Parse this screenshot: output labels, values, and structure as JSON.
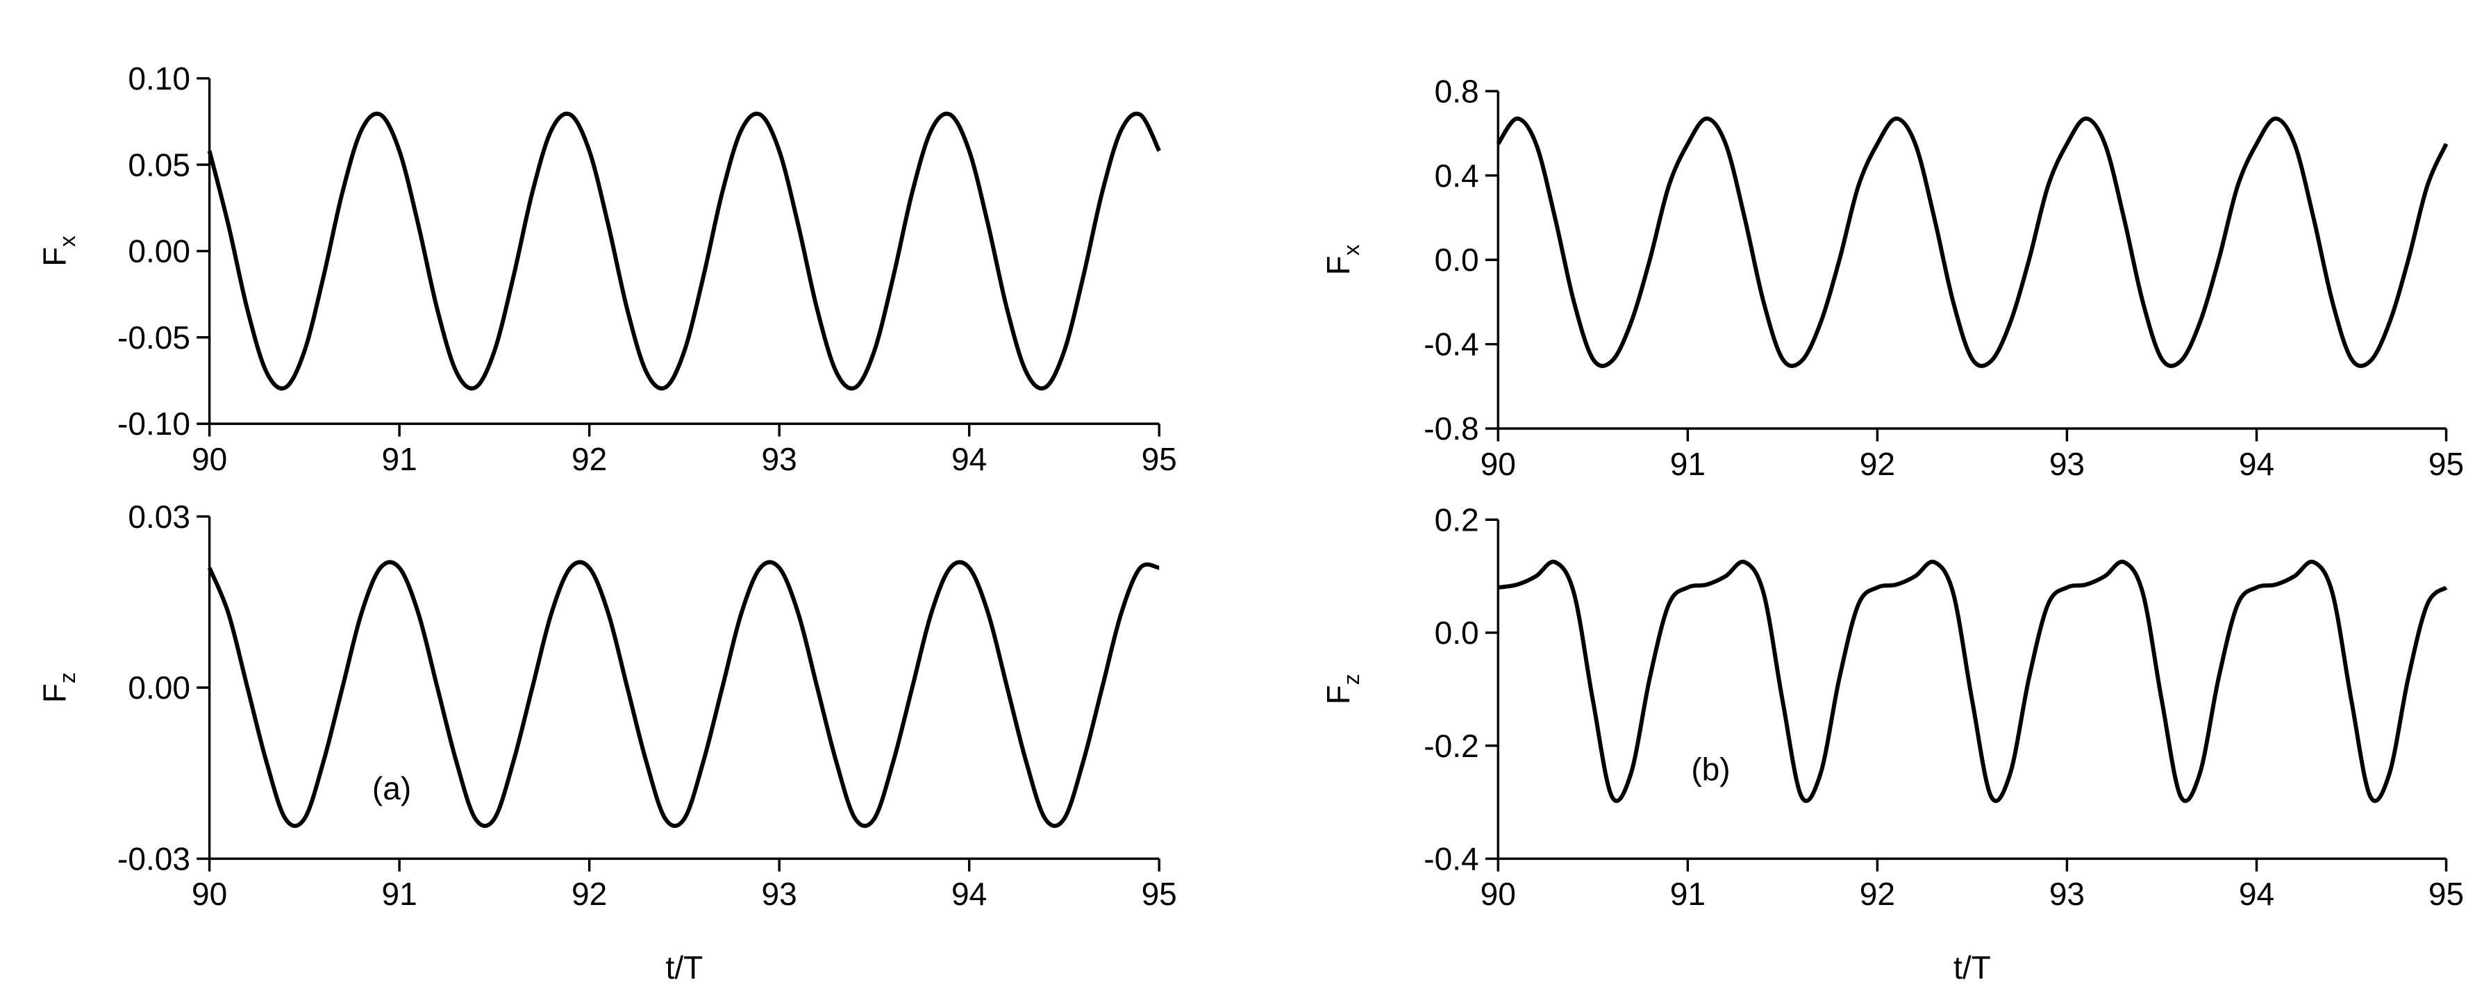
{
  "chart_data": [
    {
      "type": "line",
      "ylabel": "F",
      "ylabel_subscript": "x",
      "x": [
        90,
        90.1,
        90.2,
        90.3,
        90.4,
        90.5,
        90.6,
        90.7,
        90.8,
        90.9,
        91,
        91.1,
        91.2,
        91.3,
        91.4,
        91.5,
        91.6,
        91.7,
        91.8,
        91.9,
        92,
        92.1,
        92.2,
        92.3,
        92.4,
        92.5,
        92.6,
        92.7,
        92.8,
        92.9,
        93,
        93.1,
        93.2,
        93.3,
        93.4,
        93.5,
        93.6,
        93.7,
        93.8,
        93.9,
        94,
        94.1,
        94.2,
        94.3,
        94.4,
        94.5,
        94.6,
        94.7,
        94.8,
        94.9,
        95
      ],
      "values": [
        0.058,
        0.015,
        -0.034,
        -0.07,
        -0.079,
        -0.058,
        -0.015,
        0.034,
        0.07,
        0.079,
        0.058,
        0.015,
        -0.034,
        -0.07,
        -0.079,
        -0.058,
        -0.015,
        0.034,
        0.07,
        0.079,
        0.058,
        0.015,
        -0.034,
        -0.07,
        -0.079,
        -0.058,
        -0.015,
        0.034,
        0.07,
        0.079,
        0.058,
        0.015,
        -0.034,
        -0.07,
        -0.079,
        -0.058,
        -0.015,
        0.034,
        0.07,
        0.079,
        0.058,
        0.015,
        -0.034,
        -0.07,
        -0.079,
        -0.058,
        -0.015,
        0.034,
        0.07,
        0.079,
        0.058
      ],
      "color": "#000000",
      "xlim": [
        90,
        95
      ],
      "xticks": [
        90,
        91,
        92,
        93,
        94,
        95
      ],
      "ylim": [
        -0.1,
        0.1
      ],
      "yticks": [
        {
          "value": -0.1,
          "label": "-0.10"
        },
        {
          "value": -0.05,
          "label": "-0.05"
        },
        {
          "value": 0,
          "label": "0.00"
        },
        {
          "value": 0.05,
          "label": "0.05"
        },
        {
          "value": 0.1,
          "label": "0.10"
        }
      ]
    },
    {
      "type": "line",
      "ylabel": "F",
      "ylabel_subscript": "z",
      "xlabel": "t/T",
      "annotation": "(a)",
      "x": [
        90,
        90.1,
        90.2,
        90.3,
        90.4,
        90.5,
        90.6,
        90.7,
        90.8,
        90.9,
        91,
        91.1,
        91.2,
        91.3,
        91.4,
        91.5,
        91.6,
        91.7,
        91.8,
        91.9,
        92,
        92.1,
        92.2,
        92.3,
        92.4,
        92.5,
        92.6,
        92.7,
        92.8,
        92.9,
        93,
        93.1,
        93.2,
        93.3,
        93.4,
        93.5,
        93.6,
        93.7,
        93.8,
        93.9,
        94,
        94.1,
        94.2,
        94.3,
        94.4,
        94.5,
        94.6,
        94.7,
        94.8,
        94.9,
        95
      ],
      "values": [
        0.021,
        0.013,
        0.0,
        -0.013,
        -0.023,
        -0.023,
        -0.013,
        0.0,
        0.013,
        0.021,
        0.021,
        0.013,
        0.0,
        -0.013,
        -0.023,
        -0.023,
        -0.013,
        0.0,
        0.013,
        0.021,
        0.021,
        0.013,
        0.0,
        -0.013,
        -0.023,
        -0.023,
        -0.013,
        0.0,
        0.013,
        0.021,
        0.021,
        0.013,
        0.0,
        -0.013,
        -0.023,
        -0.023,
        -0.013,
        0.0,
        0.013,
        0.021,
        0.021,
        0.013,
        0.0,
        -0.013,
        -0.023,
        -0.023,
        -0.013,
        0.0,
        0.013,
        0.021,
        0.021
      ],
      "color": "#000000",
      "xlim": [
        90,
        95
      ],
      "xticks": [
        90,
        91,
        92,
        93,
        94,
        95
      ],
      "ylim": [
        -0.03,
        0.03
      ],
      "yticks": [
        {
          "value": -0.03,
          "label": "-0.03"
        },
        {
          "value": 0,
          "label": "0.00"
        },
        {
          "value": 0.03,
          "label": "0.03"
        }
      ]
    },
    {
      "type": "line",
      "ylabel": "F",
      "ylabel_subscript": "x",
      "x": [
        90,
        90.1,
        90.2,
        90.3,
        90.4,
        90.5,
        90.6,
        90.7,
        90.8,
        90.9,
        91,
        91.1,
        91.2,
        91.3,
        91.4,
        91.5,
        91.6,
        91.7,
        91.8,
        91.9,
        92,
        92.1,
        92.2,
        92.3,
        92.4,
        92.5,
        92.6,
        92.7,
        92.8,
        92.9,
        93,
        93.1,
        93.2,
        93.3,
        93.4,
        93.5,
        93.6,
        93.7,
        93.8,
        93.9,
        94,
        94.1,
        94.2,
        94.3,
        94.4,
        94.5,
        94.6,
        94.7,
        94.8,
        94.9,
        95
      ],
      "values": [
        0.55,
        0.67,
        0.55,
        0.2,
        -0.2,
        -0.47,
        -0.48,
        -0.3,
        0.0,
        0.35,
        0.55,
        0.67,
        0.55,
        0.2,
        -0.2,
        -0.47,
        -0.48,
        -0.3,
        0.0,
        0.35,
        0.55,
        0.67,
        0.55,
        0.2,
        -0.2,
        -0.47,
        -0.48,
        -0.3,
        0.0,
        0.35,
        0.55,
        0.67,
        0.55,
        0.2,
        -0.2,
        -0.47,
        -0.48,
        -0.3,
        0.0,
        0.35,
        0.55,
        0.67,
        0.55,
        0.2,
        -0.2,
        -0.47,
        -0.48,
        -0.3,
        0.0,
        0.35,
        0.55
      ],
      "color": "#000000",
      "xlim": [
        90,
        95
      ],
      "xticks": [
        90,
        91,
        92,
        93,
        94,
        95
      ],
      "ylim": [
        -0.8,
        0.8
      ],
      "yticks": [
        -0.8,
        -0.4,
        {
          "value": 0,
          "label": "0.0"
        },
        0.4,
        0.8
      ]
    },
    {
      "type": "line",
      "ylabel": "F",
      "ylabel_subscript": "z",
      "xlabel": "t/T",
      "annotation": "(b)",
      "x": [
        90,
        90.1,
        90.2,
        90.3,
        90.4,
        90.5,
        90.6,
        90.7,
        90.8,
        90.9,
        91,
        91.1,
        91.2,
        91.3,
        91.4,
        91.5,
        91.6,
        91.7,
        91.8,
        91.9,
        92,
        92.1,
        92.2,
        92.3,
        92.4,
        92.5,
        92.6,
        92.7,
        92.8,
        92.9,
        93,
        93.1,
        93.2,
        93.3,
        93.4,
        93.5,
        93.6,
        93.7,
        93.8,
        93.9,
        94,
        94.1,
        94.2,
        94.3,
        94.4,
        94.5,
        94.6,
        94.7,
        94.8,
        94.9,
        95
      ],
      "values": [
        0.08,
        0.085,
        0.1,
        0.125,
        0.07,
        -0.12,
        -0.29,
        -0.25,
        -0.08,
        0.05,
        0.08,
        0.085,
        0.1,
        0.125,
        0.07,
        -0.12,
        -0.29,
        -0.25,
        -0.08,
        0.05,
        0.08,
        0.085,
        0.1,
        0.125,
        0.07,
        -0.12,
        -0.29,
        -0.25,
        -0.08,
        0.05,
        0.08,
        0.085,
        0.1,
        0.125,
        0.07,
        -0.12,
        -0.29,
        -0.25,
        -0.08,
        0.05,
        0.08,
        0.085,
        0.1,
        0.125,
        0.07,
        -0.12,
        -0.29,
        -0.25,
        -0.08,
        0.05,
        0.08
      ],
      "color": "#000000",
      "xlim": [
        90,
        95
      ],
      "xticks": [
        90,
        91,
        92,
        93,
        94,
        95
      ],
      "ylim": [
        -0.4,
        0.2
      ],
      "yticks": [
        -0.4,
        -0.2,
        {
          "value": 0,
          "label": "0.0"
        },
        0.2
      ]
    }
  ]
}
